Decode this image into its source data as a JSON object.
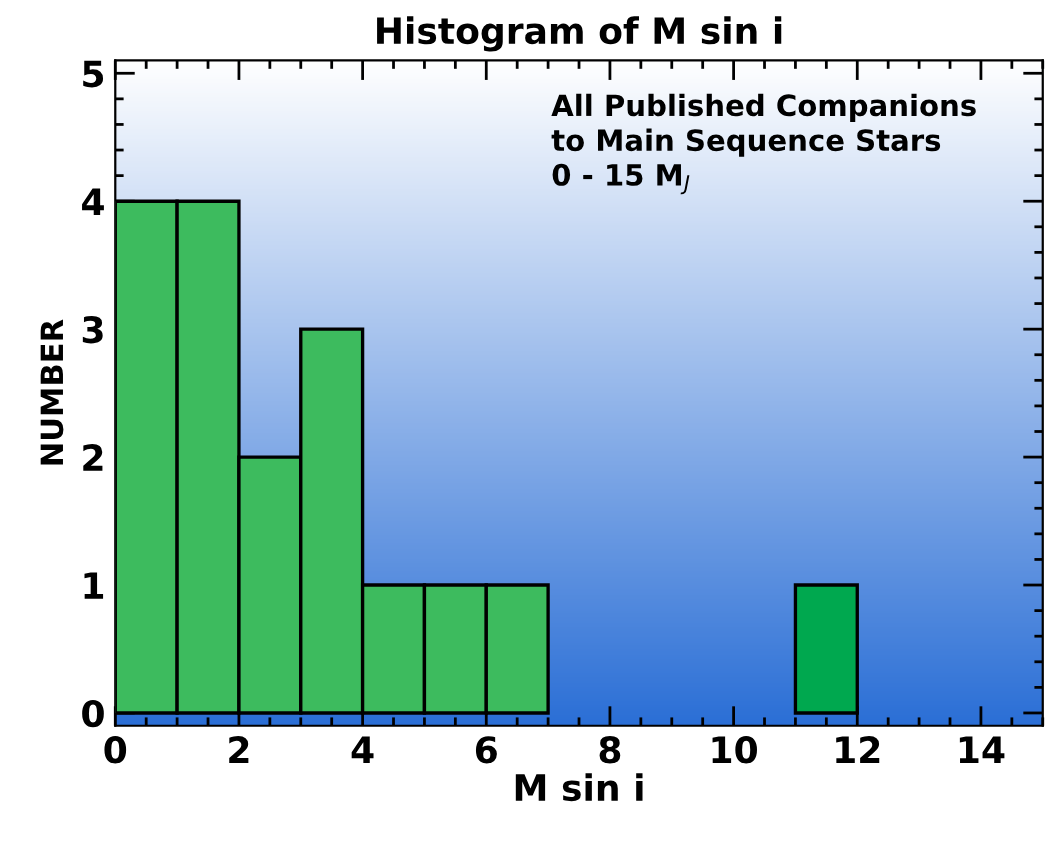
{
  "chart_data": {
    "type": "histogram",
    "title": "Histogram of M sin i",
    "xlabel": "M sin i",
    "ylabel": "NUMBER",
    "bins": [
      0,
      1,
      2,
      3,
      4,
      5,
      6,
      7,
      8,
      9,
      10,
      11,
      12,
      13,
      14,
      15
    ],
    "values": [
      4,
      4,
      2,
      3,
      1,
      1,
      1,
      0,
      0,
      0,
      0,
      1,
      0,
      0,
      0
    ],
    "colors": [
      "#3dbb5e",
      "#3dbb5e",
      "#3dbb5e",
      "#3dbb5e",
      "#3dbb5e",
      "#3dbb5e",
      "#3dbb5e",
      "#3dbb5e",
      "#3dbb5e",
      "#3dbb5e",
      "#3dbb5e",
      "#00a84f",
      "#3dbb5e",
      "#3dbb5e",
      "#3dbb5e"
    ],
    "xlim": [
      0,
      15
    ],
    "ylim": [
      -0.1,
      5.1
    ],
    "xticks": [
      0,
      2,
      4,
      6,
      8,
      10,
      12,
      14
    ],
    "yticks": [
      0,
      1,
      2,
      3,
      4,
      5
    ],
    "annotations": [
      "All Published Companions\nto Main Sequence Stars\n0 - 15 M$_{J}$"
    ],
    "grid": false,
    "legend": false
  }
}
